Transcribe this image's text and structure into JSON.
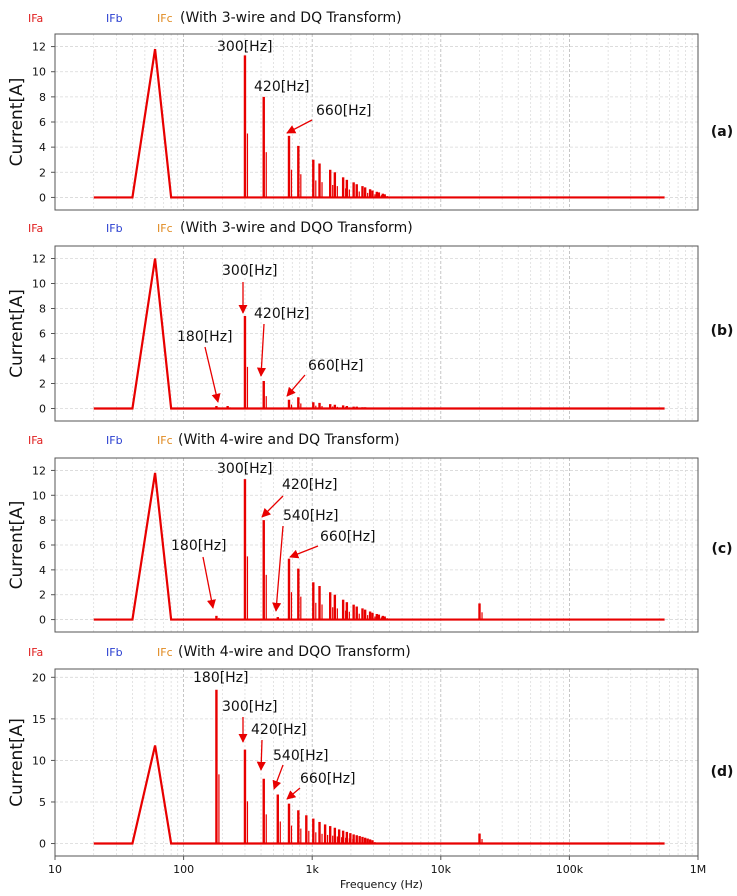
{
  "colors": {
    "IFa": "#e02020",
    "IFb": "#2a3fd0",
    "IFc": "#e08a20",
    "trace": "#e80000",
    "grid": "#d8d8d8",
    "plot_bg": "#ffffff"
  },
  "xaxis": {
    "label": "Frequency (Hz)",
    "scale": "log",
    "range": [
      10,
      1000000
    ],
    "ticks": [
      10,
      100,
      1000,
      10000,
      100000,
      1000000
    ],
    "tick_labels": [
      "10",
      "100",
      "1k",
      "10k",
      "100k",
      "1M"
    ]
  },
  "chart_data": [
    {
      "type": "line",
      "panel_label": "(a)",
      "legend": [
        "IFa",
        "IFb",
        "IFc"
      ],
      "title": "(With 3-wire and DQ Transform)",
      "ylabel": "Current[A]",
      "ylim": [
        -1,
        13
      ],
      "yticks": [
        0,
        2,
        4,
        6,
        8,
        10,
        12
      ],
      "grid": true,
      "fundamental": {
        "x": [
          20,
          40,
          60,
          80
        ],
        "y": [
          0,
          0,
          11.8,
          0
        ]
      },
      "harmonics": [
        [
          300,
          11.3
        ],
        [
          420,
          8.0
        ],
        [
          660,
          4.9
        ],
        [
          780,
          4.1
        ],
        [
          1020,
          3.0
        ],
        [
          1140,
          2.7
        ],
        [
          1380,
          2.2
        ],
        [
          1500,
          2.0
        ],
        [
          1740,
          1.6
        ],
        [
          1860,
          1.4
        ],
        [
          2100,
          1.2
        ],
        [
          2220,
          1.05
        ],
        [
          2460,
          0.9
        ],
        [
          2580,
          0.8
        ],
        [
          2820,
          0.65
        ],
        [
          2940,
          0.55
        ],
        [
          3180,
          0.45
        ],
        [
          3300,
          0.4
        ],
        [
          3540,
          0.3
        ],
        [
          3660,
          0.25
        ]
      ],
      "x_end": 550000,
      "annotations": [
        {
          "text": "300[Hz]",
          "x": 300,
          "y": 11.3
        },
        {
          "text": "420[Hz]",
          "x": 420,
          "y": 8.0
        },
        {
          "text": "660[Hz]",
          "x": 660,
          "y": 4.9
        }
      ]
    },
    {
      "type": "line",
      "panel_label": "(b)",
      "legend": [
        "IFa",
        "IFb",
        "IFc"
      ],
      "title": "(With 3-wire and DQO Transform)",
      "ylabel": "Current[A]",
      "ylim": [
        -1,
        13
      ],
      "yticks": [
        0,
        2,
        4,
        6,
        8,
        10,
        12
      ],
      "grid": true,
      "fundamental": {
        "x": [
          20,
          40,
          60,
          80
        ],
        "y": [
          0,
          0,
          12.0,
          0
        ]
      },
      "harmonics": [
        [
          180,
          0.2
        ],
        [
          220,
          0.2
        ],
        [
          300,
          7.4
        ],
        [
          420,
          2.2
        ],
        [
          660,
          0.7
        ],
        [
          780,
          0.9
        ],
        [
          1020,
          0.5
        ],
        [
          1140,
          0.45
        ],
        [
          1380,
          0.35
        ],
        [
          1500,
          0.3
        ],
        [
          1740,
          0.25
        ],
        [
          1860,
          0.2
        ],
        [
          2100,
          0.15
        ],
        [
          2220,
          0.15
        ],
        [
          2460,
          0.1
        ],
        [
          2580,
          0.1
        ]
      ],
      "x_end": 550000,
      "annotations": [
        {
          "text": "180[Hz]",
          "x": 180,
          "y": 0.2
        },
        {
          "text": "300[Hz]",
          "x": 300,
          "y": 7.4
        },
        {
          "text": "420[Hz]",
          "x": 420,
          "y": 2.2
        },
        {
          "text": "660[Hz]",
          "x": 660,
          "y": 0.7
        }
      ]
    },
    {
      "type": "line",
      "panel_label": "(c)",
      "legend": [
        "IFa",
        "IFb",
        "IFc"
      ],
      "title": "(With 4-wire and DQ Transform)",
      "ylabel": "Current[A]",
      "ylim": [
        -1,
        13
      ],
      "yticks": [
        0,
        2,
        4,
        6,
        8,
        10,
        12
      ],
      "grid": true,
      "fundamental": {
        "x": [
          20,
          40,
          60,
          80
        ],
        "y": [
          0,
          0,
          11.8,
          0
        ]
      },
      "harmonics": [
        [
          180,
          0.3
        ],
        [
          300,
          11.3
        ],
        [
          420,
          8.0
        ],
        [
          540,
          0.2
        ],
        [
          660,
          4.9
        ],
        [
          780,
          4.1
        ],
        [
          1020,
          3.0
        ],
        [
          1140,
          2.7
        ],
        [
          1380,
          2.2
        ],
        [
          1500,
          2.0
        ],
        [
          1740,
          1.6
        ],
        [
          1860,
          1.4
        ],
        [
          2100,
          1.2
        ],
        [
          2220,
          1.05
        ],
        [
          2460,
          0.9
        ],
        [
          2580,
          0.8
        ],
        [
          2820,
          0.65
        ],
        [
          2940,
          0.55
        ],
        [
          3180,
          0.45
        ],
        [
          3300,
          0.4
        ],
        [
          3540,
          0.3
        ],
        [
          3660,
          0.25
        ],
        [
          20000,
          1.3
        ]
      ],
      "x_end": 550000,
      "annotations": [
        {
          "text": "180[Hz]",
          "x": 180,
          "y": 0.3
        },
        {
          "text": "300[Hz]",
          "x": 300,
          "y": 11.3
        },
        {
          "text": "420[Hz]",
          "x": 420,
          "y": 8.0
        },
        {
          "text": "540[Hz]",
          "x": 540,
          "y": 0.2
        },
        {
          "text": "660[Hz]",
          "x": 660,
          "y": 4.9
        }
      ]
    },
    {
      "type": "line",
      "panel_label": "(d)",
      "legend": [
        "IFa",
        "IFb",
        "IFc"
      ],
      "title": "(With 4-wire and DQO Transform)",
      "ylabel": "Current[A]",
      "ylim": [
        -1.5,
        21
      ],
      "yticks": [
        0,
        5,
        10,
        15,
        20
      ],
      "grid": true,
      "fundamental": {
        "x": [
          20,
          40,
          60,
          80
        ],
        "y": [
          0,
          0,
          11.8,
          0
        ]
      },
      "harmonics": [
        [
          180,
          18.5
        ],
        [
          300,
          11.3
        ],
        [
          420,
          7.8
        ],
        [
          540,
          5.9
        ],
        [
          660,
          4.8
        ],
        [
          780,
          4.0
        ],
        [
          900,
          3.4
        ],
        [
          1020,
          3.0
        ],
        [
          1140,
          2.6
        ],
        [
          1260,
          2.3
        ],
        [
          1380,
          2.1
        ],
        [
          1500,
          1.9
        ],
        [
          1620,
          1.7
        ],
        [
          1740,
          1.55
        ],
        [
          1860,
          1.4
        ],
        [
          1980,
          1.25
        ],
        [
          2100,
          1.1
        ],
        [
          2220,
          1.0
        ],
        [
          2340,
          0.9
        ],
        [
          2460,
          0.8
        ],
        [
          2580,
          0.7
        ],
        [
          2700,
          0.6
        ],
        [
          2820,
          0.5
        ],
        [
          2940,
          0.4
        ],
        [
          20000,
          1.2
        ]
      ],
      "x_end": 550000,
      "annotations": [
        {
          "text": "180[Hz]",
          "x": 180,
          "y": 18.5
        },
        {
          "text": "300[Hz]",
          "x": 300,
          "y": 11.3
        },
        {
          "text": "420[Hz]",
          "x": 420,
          "y": 7.8
        },
        {
          "text": "540[Hz]",
          "x": 540,
          "y": 5.9
        },
        {
          "text": "660[Hz]",
          "x": 660,
          "y": 4.8
        }
      ]
    }
  ]
}
